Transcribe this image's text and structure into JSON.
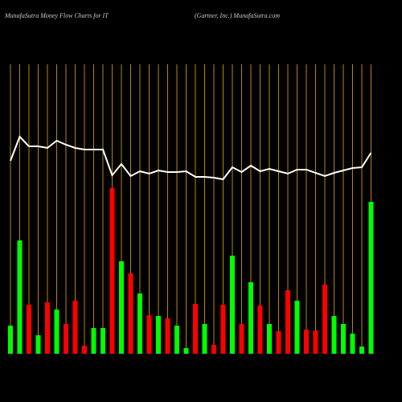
{
  "chart_data": {
    "type": "bar",
    "title": "MunafaSutra  Money Flow  Charts for IT",
    "subtitle": "(Gartner,  Inc.) MunafaSutra.com",
    "categories": [
      null,
      null,
      null,
      null,
      null,
      null,
      null,
      null,
      null,
      null,
      null,
      null,
      null,
      null,
      null,
      null,
      null,
      null,
      null,
      null,
      null,
      null,
      null,
      null,
      null,
      null,
      null,
      null,
      null,
      null,
      null,
      null,
      null,
      null,
      null,
      null,
      null,
      null,
      null,
      null
    ],
    "values": [
      35,
      141,
      61,
      23,
      64,
      55,
      37,
      66,
      10,
      32,
      32,
      206,
      115,
      100,
      75,
      48,
      47,
      44,
      35,
      7,
      62,
      37,
      11,
      61,
      122,
      37,
      89,
      60,
      37,
      28,
      79,
      66,
      30,
      29,
      86,
      47,
      37,
      25,
      9,
      189
    ],
    "colors": [
      "#0f0",
      "#0f0",
      "#f00",
      "#0f0",
      "#f00",
      "#0f0",
      "#f00",
      "#f00",
      "#f00",
      "#0f0",
      "#0f0",
      "#f00",
      "#0f0",
      "#f00",
      "#0f0",
      "#f00",
      "#0f0",
      "#f00",
      "#0f0",
      "#0f0",
      "#f00",
      "#0f0",
      "#f00",
      "#f00",
      "#0f0",
      "#f00",
      "#0f0",
      "#f00",
      "#0f0",
      "#f00",
      "#f00",
      "#0f0",
      "#f00",
      "#f00",
      "#f00",
      "#0f0",
      "#0f0",
      "#0f0",
      "#0f0",
      "#0f0"
    ],
    "line": {
      "color": "#ffffff",
      "values": [
        240,
        270,
        258,
        258,
        256,
        265,
        260,
        256,
        254,
        254,
        254,
        222,
        236,
        221,
        227,
        224,
        228,
        226,
        226,
        227,
        220,
        220,
        219,
        217,
        232,
        226,
        234,
        227,
        230,
        227,
        224,
        229,
        229,
        225,
        221,
        225,
        228,
        231,
        232,
        250
      ]
    },
    "grid_color": "#b8860b"
  }
}
